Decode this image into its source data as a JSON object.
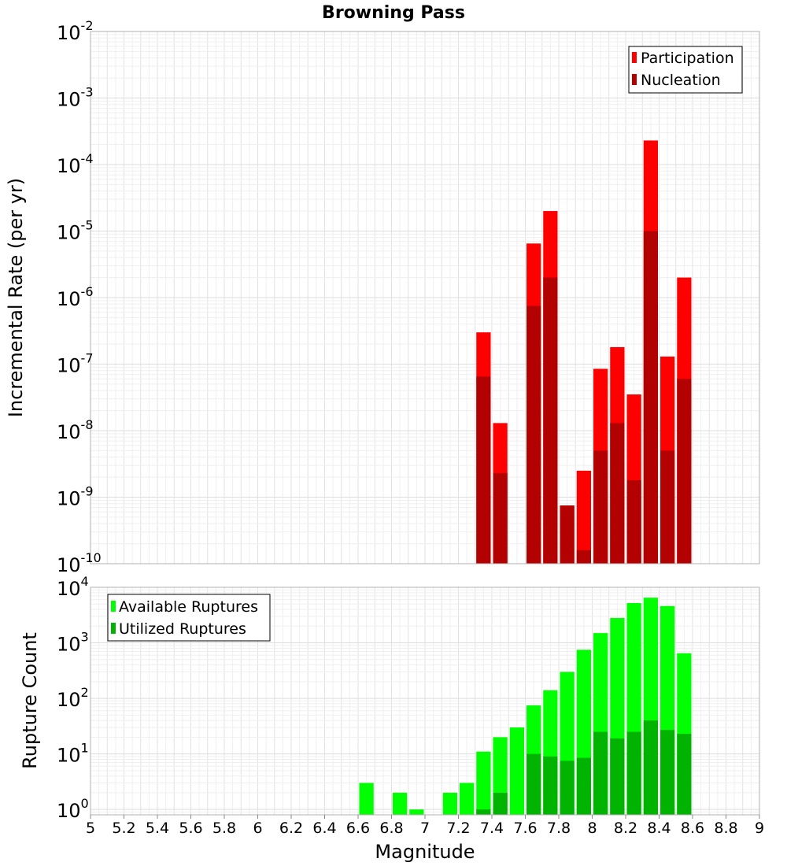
{
  "chart_data": [
    {
      "type": "bar",
      "title": "Browning Pass",
      "xlabel": "",
      "ylabel": "Incremental Rate (per yr)",
      "y_scale": "log",
      "ylim": [
        1e-10,
        0.01
      ],
      "xlim": [
        5,
        9
      ],
      "bin_width": 0.1,
      "grid": true,
      "legend_position": "top-right",
      "y_tick_labels": [
        {
          "base": "10",
          "exp": "-10",
          "value": 1e-10
        },
        {
          "base": "10",
          "exp": "-9",
          "value": 1e-09
        },
        {
          "base": "10",
          "exp": "-8",
          "value": 1e-08
        },
        {
          "base": "10",
          "exp": "-7",
          "value": 1e-07
        },
        {
          "base": "10",
          "exp": "-6",
          "value": 1e-06
        },
        {
          "base": "10",
          "exp": "-5",
          "value": 1e-05
        },
        {
          "base": "10",
          "exp": "-4",
          "value": 0.0001
        },
        {
          "base": "10",
          "exp": "-3",
          "value": 0.001
        },
        {
          "base": "10",
          "exp": "-2",
          "value": 0.01
        }
      ],
      "x": [
        7.35,
        7.45,
        7.55,
        7.65,
        7.75,
        7.85,
        7.95,
        8.05,
        8.15,
        8.25,
        8.35,
        8.45,
        8.55
      ],
      "series": [
        {
          "name": "Participation",
          "color": "#ff0000",
          "values": [
            3e-07,
            1.3e-08,
            null,
            6.5e-06,
            2e-05,
            7.5e-10,
            2.5e-09,
            8.5e-08,
            1.8e-07,
            3.5e-08,
            0.00023,
            1.3e-07,
            2e-06
          ]
        },
        {
          "name": "Nucleation",
          "color": "#b30000",
          "values": [
            6.5e-08,
            2.3e-09,
            null,
            7.5e-07,
            2e-06,
            7.5e-10,
            1.6e-10,
            5e-09,
            1.3e-08,
            1.8e-09,
            1e-05,
            5e-09,
            6e-08
          ]
        }
      ]
    },
    {
      "type": "bar",
      "title": "",
      "xlabel": "Magnitude",
      "ylabel": "Rupture Count",
      "y_scale": "log",
      "ylim": [
        0.8,
        10000
      ],
      "xlim": [
        5,
        9
      ],
      "bin_width": 0.1,
      "grid": true,
      "legend_position": "top-left",
      "x_ticks": [
        5,
        5.2,
        5.4,
        5.6,
        5.8,
        6,
        6.2,
        6.4,
        6.6,
        6.8,
        7,
        7.2,
        7.4,
        7.6,
        7.8,
        8,
        8.2,
        8.4,
        8.6,
        8.8,
        9
      ],
      "x_tick_labels": [
        "5",
        "5.2",
        "5.4",
        "5.6",
        "5.8",
        "6",
        "6.2",
        "6.4",
        "6.6",
        "6.8",
        "7",
        "7.2",
        "7.4",
        "7.6",
        "7.8",
        "8",
        "8.2",
        "8.4",
        "8.6",
        "8.8",
        "9"
      ],
      "y_tick_labels": [
        {
          "base": "10",
          "exp": "0",
          "value": 1
        },
        {
          "base": "10",
          "exp": "1",
          "value": 10
        },
        {
          "base": "10",
          "exp": "2",
          "value": 100
        },
        {
          "base": "10",
          "exp": "3",
          "value": 1000
        },
        {
          "base": "10",
          "exp": "4",
          "value": 10000
        }
      ],
      "x": [
        6.65,
        6.85,
        6.95,
        7.15,
        7.25,
        7.35,
        7.45,
        7.55,
        7.65,
        7.75,
        7.85,
        7.95,
        8.05,
        8.15,
        8.25,
        8.35,
        8.45,
        8.55
      ],
      "series": [
        {
          "name": "Available Ruptures",
          "color": "#00ff00",
          "values": [
            3,
            2,
            1,
            2,
            3,
            11,
            20,
            30,
            75,
            140,
            300,
            750,
            1500,
            2800,
            5200,
            6500,
            4600,
            650
          ]
        },
        {
          "name": "Utilized Ruptures",
          "color": "#00b300",
          "values": [
            null,
            null,
            null,
            null,
            null,
            1,
            2,
            null,
            10,
            9,
            7.5,
            8.5,
            25,
            19,
            25,
            40,
            27,
            23
          ]
        }
      ]
    }
  ]
}
